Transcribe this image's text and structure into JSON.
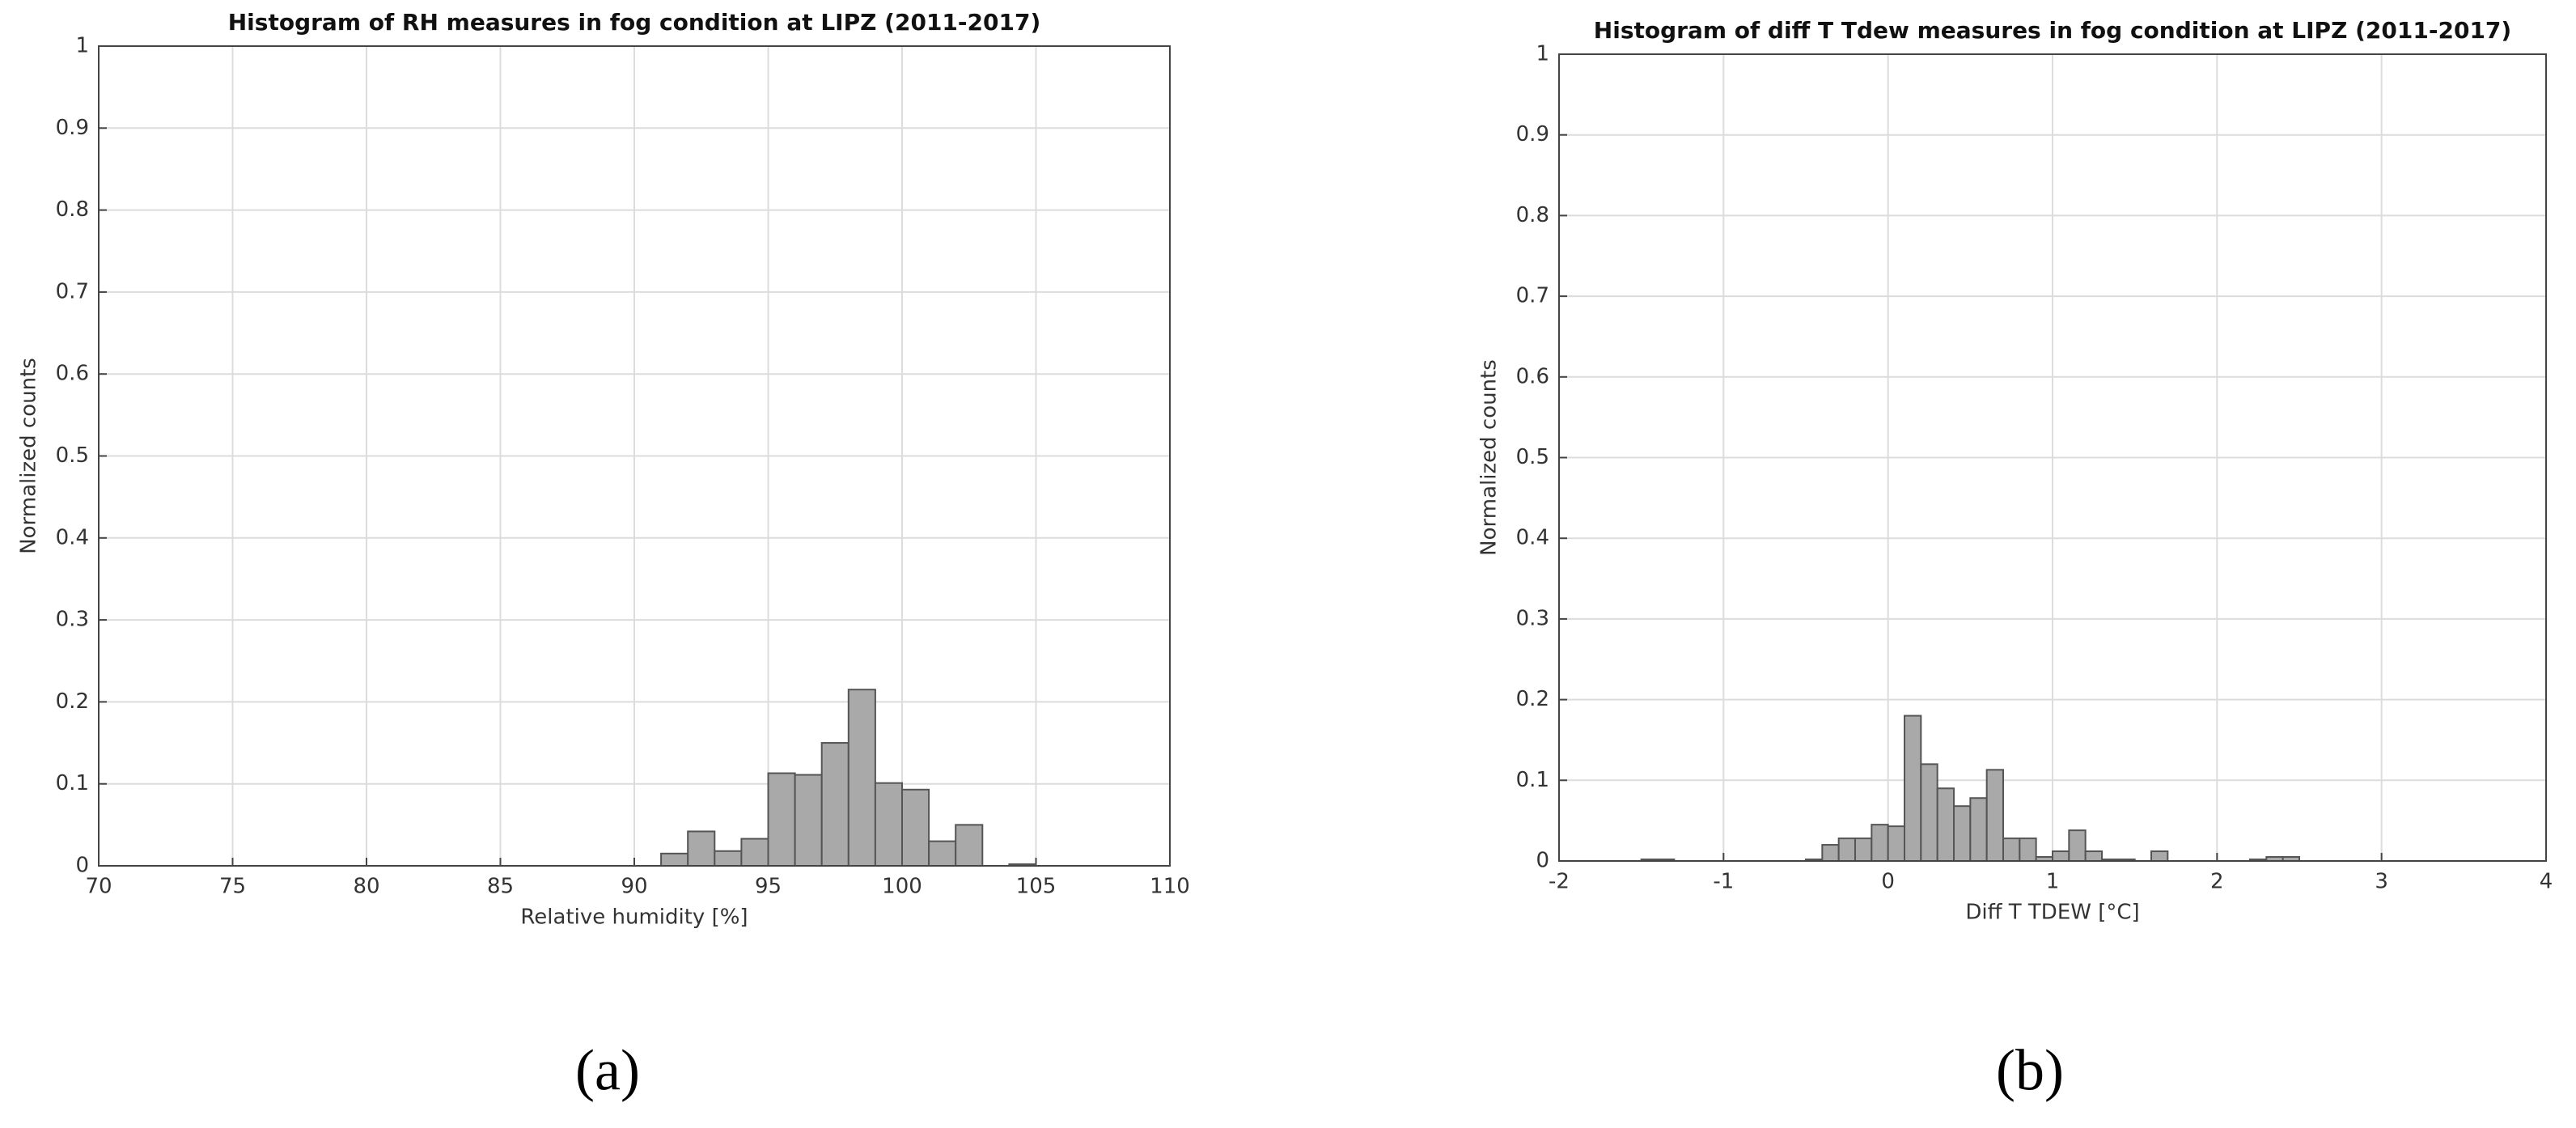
{
  "chart_data": [
    {
      "type": "histogram",
      "title": "Histogram of RH measures in fog condition at LIPZ (2011-2017)",
      "x_label": "Relative humidity [%]",
      "y_label": "Normalized counts",
      "caption": "(a)",
      "bins": [
        91,
        92,
        93,
        94,
        95,
        96,
        97,
        98,
        99,
        100,
        101,
        102,
        103,
        104,
        105
      ],
      "values": [
        0.015,
        0.042,
        0.018,
        0.033,
        0.113,
        0.111,
        0.15,
        0.215,
        0.101,
        0.093,
        0.03,
        0.05,
        0,
        0.002
      ],
      "color": "#a9a9a9",
      "xlim": [
        70,
        110
      ],
      "xticks": [
        70,
        75,
        80,
        85,
        90,
        95,
        100,
        105,
        110
      ],
      "ylim": [
        0,
        1
      ],
      "yticks": [
        0,
        0.1,
        0.2,
        0.3,
        0.4,
        0.5,
        0.6,
        0.7,
        0.8,
        0.9,
        1
      ],
      "grid": true
    },
    {
      "type": "histogram",
      "title": "Histogram of diff T Tdew measures in fog condition at LIPZ (2011-2017)",
      "x_label": "Diff T TDEW [°C]",
      "y_label": "Normalized counts",
      "caption": "(b)",
      "bins": [
        -1.5,
        -1.4,
        -1.3,
        -1.2,
        -1.1,
        -1.0,
        -0.9,
        -0.8,
        -0.7,
        -0.6,
        -0.5,
        -0.4,
        -0.3,
        -0.2,
        -0.1,
        0.0,
        0.1,
        0.2,
        0.3,
        0.4,
        0.5,
        0.6,
        0.7,
        0.8,
        0.9,
        1.0,
        1.1,
        1.2,
        1.3,
        1.4,
        1.5,
        1.6,
        1.7,
        1.8,
        1.9,
        2.0,
        2.1,
        2.2,
        2.3,
        2.4,
        2.5
      ],
      "values": [
        0.002,
        0.002,
        0,
        0,
        0,
        0,
        0,
        0,
        0,
        0,
        0.002,
        0.02,
        0.028,
        0.028,
        0.045,
        0.043,
        0.18,
        0.12,
        0.09,
        0.068,
        0.078,
        0.113,
        0.028,
        0.028,
        0.005,
        0.012,
        0.038,
        0.012,
        0.002,
        0.002,
        0,
        0.012,
        0,
        0,
        0,
        0,
        0,
        0.002,
        0.005,
        0.005
      ],
      "color": "#a9a9a9",
      "xlim": [
        -2,
        4
      ],
      "xticks": [
        -2,
        -1,
        0,
        1,
        2,
        3,
        4
      ],
      "ylim": [
        0,
        1
      ],
      "yticks": [
        0,
        0.1,
        0.2,
        0.3,
        0.4,
        0.5,
        0.6,
        0.7,
        0.8,
        0.9,
        1
      ],
      "grid": true
    }
  ]
}
